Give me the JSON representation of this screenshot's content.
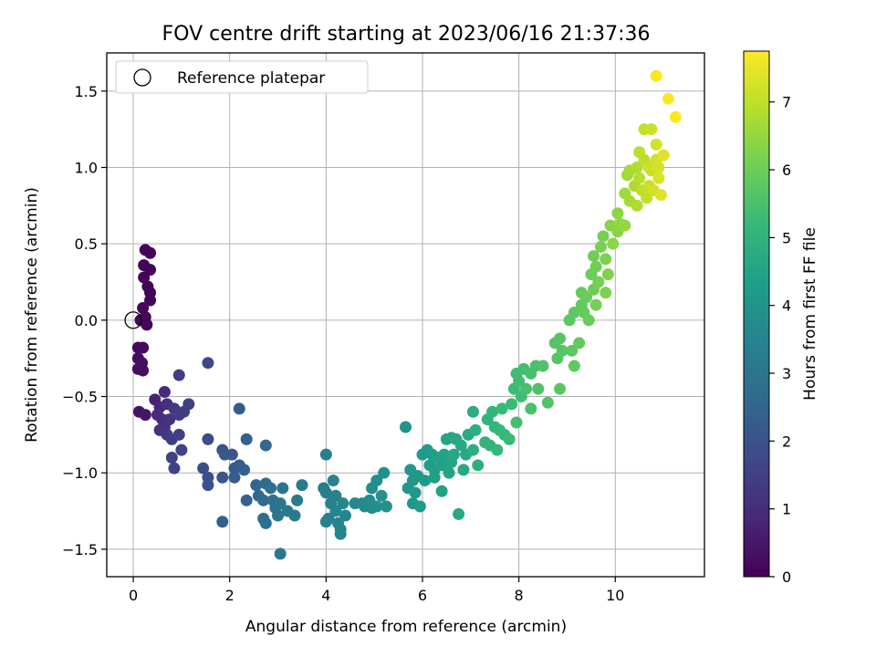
{
  "chart_data": {
    "type": "scatter",
    "title": "FOV centre drift starting at 2023/06/16 21:37:36",
    "xlabel": "Angular distance from reference (arcmin)",
    "ylabel": "Rotation from reference (arcmin)",
    "xlim": [
      -0.55,
      11.85
    ],
    "ylim": [
      -1.68,
      1.75
    ],
    "x_ticks": [
      0,
      2,
      4,
      6,
      8,
      10
    ],
    "y_ticks": [
      -1.5,
      -1.0,
      -0.5,
      0.0,
      0.5,
      1.0,
      1.5
    ],
    "x_tick_labels": [
      "0",
      "2",
      "4",
      "6",
      "8",
      "10"
    ],
    "y_tick_labels": [
      "−1.5",
      "−1.0",
      "−0.5",
      "0.0",
      "0.5",
      "1.0",
      "1.5"
    ],
    "grid": true,
    "legend": {
      "position": "top-left",
      "entries": [
        "Reference platepar"
      ]
    },
    "reference_point": {
      "x": 0.0,
      "y": 0.0
    },
    "colorbar": {
      "label": "Hours from first FF file",
      "range": [
        0,
        7.75
      ],
      "ticks": [
        0,
        1,
        2,
        3,
        4,
        5,
        6,
        7
      ],
      "tick_labels": [
        "0",
        "1",
        "2",
        "3",
        "4",
        "5",
        "6",
        "7"
      ],
      "colormap": "viridis",
      "colors": [
        "#440154",
        "#482878",
        "#3e4989",
        "#31688e",
        "#26828e",
        "#1f9e89",
        "#35b779",
        "#6ece58",
        "#b5de2b",
        "#fde725"
      ]
    },
    "points": [
      [
        0.25,
        0.46,
        0.05
      ],
      [
        0.35,
        0.44,
        0.06
      ],
      [
        0.22,
        0.36,
        0.07
      ],
      [
        0.35,
        0.33,
        0.08
      ],
      [
        0.22,
        0.28,
        0.09
      ],
      [
        0.3,
        0.22,
        0.1
      ],
      [
        0.35,
        0.18,
        0.11
      ],
      [
        0.35,
        0.13,
        0.12
      ],
      [
        0.2,
        0.08,
        0.13
      ],
      [
        0.25,
        0.02,
        0.14
      ],
      [
        0.15,
        0.0,
        0.15
      ],
      [
        0.28,
        -0.03,
        0.16
      ],
      [
        0.1,
        -0.18,
        0.2
      ],
      [
        0.2,
        -0.18,
        0.22
      ],
      [
        0.1,
        -0.25,
        0.25
      ],
      [
        0.18,
        -0.28,
        0.28
      ],
      [
        0.1,
        -0.32,
        0.3
      ],
      [
        0.2,
        -0.33,
        0.32
      ],
      [
        0.12,
        -0.6,
        0.4
      ],
      [
        0.25,
        -0.62,
        0.45
      ],
      [
        0.45,
        -0.52,
        0.7
      ],
      [
        0.55,
        -0.57,
        0.8
      ],
      [
        0.65,
        -0.47,
        0.9
      ],
      [
        0.5,
        -0.62,
        0.95
      ],
      [
        0.6,
        -0.65,
        1.0
      ],
      [
        0.7,
        -0.55,
        1.05
      ],
      [
        0.55,
        -0.72,
        1.1
      ],
      [
        0.65,
        -0.7,
        1.15
      ],
      [
        0.75,
        -0.65,
        1.2
      ],
      [
        0.85,
        -0.58,
        1.25
      ],
      [
        0.7,
        -0.75,
        1.3
      ],
      [
        0.8,
        -0.78,
        1.35
      ],
      [
        0.95,
        -0.62,
        1.4
      ],
      [
        0.95,
        -0.36,
        1.42
      ],
      [
        1.05,
        -0.6,
        1.45
      ],
      [
        1.15,
        -0.55,
        1.5
      ],
      [
        0.95,
        -0.75,
        1.5
      ],
      [
        0.8,
        -0.9,
        1.55
      ],
      [
        1.0,
        -0.85,
        1.6
      ],
      [
        0.85,
        -0.97,
        1.6
      ],
      [
        1.55,
        -0.28,
        1.7
      ],
      [
        1.55,
        -0.78,
        1.8
      ],
      [
        1.45,
        -0.97,
        1.85
      ],
      [
        1.55,
        -1.03,
        1.9
      ],
      [
        1.55,
        -1.08,
        1.95
      ],
      [
        1.85,
        -0.85,
        2.0
      ],
      [
        1.85,
        -1.03,
        2.05
      ],
      [
        1.9,
        -0.88,
        2.1
      ],
      [
        2.05,
        -0.88,
        2.15
      ],
      [
        2.1,
        -0.97,
        2.2
      ],
      [
        2.1,
        -1.03,
        2.25
      ],
      [
        2.2,
        -0.58,
        2.25
      ],
      [
        2.2,
        -0.95,
        2.3
      ],
      [
        2.3,
        -0.98,
        2.35
      ],
      [
        1.85,
        -1.32,
        2.35
      ],
      [
        2.35,
        -0.78,
        2.4
      ],
      [
        2.35,
        -1.18,
        2.45
      ],
      [
        2.55,
        -1.08,
        2.5
      ],
      [
        2.6,
        -1.15,
        2.55
      ],
      [
        2.75,
        -0.82,
        2.6
      ],
      [
        2.75,
        -1.07,
        2.65
      ],
      [
        2.7,
        -1.18,
        2.7
      ],
      [
        2.7,
        -1.3,
        2.75
      ],
      [
        2.75,
        -1.33,
        2.8
      ],
      [
        2.85,
        -1.1,
        2.85
      ],
      [
        2.9,
        -1.18,
        2.9
      ],
      [
        2.95,
        -1.23,
        2.95
      ],
      [
        3.0,
        -1.28,
        3.0
      ],
      [
        3.05,
        -1.2,
        3.0
      ],
      [
        3.1,
        -1.1,
        3.05
      ],
      [
        3.05,
        -1.53,
        3.1
      ],
      [
        3.2,
        -1.25,
        3.1
      ],
      [
        3.35,
        -1.28,
        3.15
      ],
      [
        3.4,
        -1.18,
        3.15
      ],
      [
        3.5,
        -1.08,
        3.2
      ],
      [
        3.95,
        -1.1,
        3.25
      ],
      [
        4.0,
        -0.88,
        3.3
      ],
      [
        4.0,
        -1.13,
        3.35
      ],
      [
        4.05,
        -1.3,
        3.35
      ],
      [
        4.0,
        -1.32,
        3.4
      ],
      [
        4.1,
        -1.2,
        3.4
      ],
      [
        4.15,
        -1.05,
        3.45
      ],
      [
        4.2,
        -1.15,
        3.45
      ],
      [
        4.2,
        -1.25,
        3.5
      ],
      [
        4.25,
        -1.33,
        3.5
      ],
      [
        4.3,
        -1.37,
        3.55
      ],
      [
        4.3,
        -1.4,
        3.55
      ],
      [
        4.35,
        -1.2,
        3.6
      ],
      [
        4.4,
        -1.28,
        3.6
      ],
      [
        4.6,
        -1.2,
        3.65
      ],
      [
        4.75,
        -1.2,
        3.7
      ],
      [
        4.8,
        -1.22,
        3.72
      ],
      [
        4.9,
        -1.18,
        3.75
      ],
      [
        4.95,
        -1.23,
        3.78
      ],
      [
        4.95,
        -1.1,
        3.8
      ],
      [
        5.05,
        -1.05,
        3.82
      ],
      [
        5.05,
        -1.22,
        3.85
      ],
      [
        5.15,
        -1.15,
        3.87
      ],
      [
        5.2,
        -1.0,
        3.9
      ],
      [
        5.25,
        -1.22,
        3.92
      ],
      [
        5.65,
        -0.7,
        4.0
      ],
      [
        5.7,
        -1.1,
        4.05
      ],
      [
        5.75,
        -0.98,
        4.05
      ],
      [
        5.8,
        -1.05,
        4.1
      ],
      [
        5.8,
        -1.2,
        4.1
      ],
      [
        5.85,
        -1.13,
        4.15
      ],
      [
        5.9,
        -1.02,
        4.15
      ],
      [
        5.95,
        -1.22,
        4.2
      ],
      [
        6.0,
        -0.88,
        4.2
      ],
      [
        6.05,
        -1.05,
        4.25
      ],
      [
        6.1,
        -0.85,
        4.25
      ],
      [
        6.15,
        -0.95,
        4.3
      ],
      [
        6.2,
        -0.88,
        4.3
      ],
      [
        6.25,
        -0.98,
        4.35
      ],
      [
        6.25,
        -1.03,
        4.35
      ],
      [
        6.3,
        -0.9,
        4.4
      ],
      [
        6.4,
        -0.95,
        4.4
      ],
      [
        6.4,
        -1.12,
        4.45
      ],
      [
        6.45,
        -0.88,
        4.45
      ],
      [
        6.5,
        -0.78,
        4.5
      ],
      [
        6.55,
        -1.0,
        4.5
      ],
      [
        6.6,
        -0.77,
        4.55
      ],
      [
        6.6,
        -0.93,
        4.55
      ],
      [
        6.65,
        -0.88,
        4.6
      ],
      [
        6.7,
        -0.78,
        4.6
      ],
      [
        6.75,
        -1.27,
        4.65
      ],
      [
        6.8,
        -0.82,
        4.65
      ],
      [
        6.85,
        -0.98,
        4.7
      ],
      [
        6.9,
        -0.88,
        4.7
      ],
      [
        6.95,
        -0.75,
        4.75
      ],
      [
        7.05,
        -0.6,
        4.8
      ],
      [
        7.05,
        -0.85,
        4.85
      ],
      [
        7.1,
        -0.72,
        4.9
      ],
      [
        7.15,
        -0.95,
        4.9
      ],
      [
        7.3,
        -0.8,
        5.0
      ],
      [
        7.35,
        -0.65,
        5.05
      ],
      [
        7.4,
        -0.82,
        5.05
      ],
      [
        7.45,
        -0.6,
        5.1
      ],
      [
        7.5,
        -0.7,
        5.1
      ],
      [
        7.55,
        -0.85,
        5.15
      ],
      [
        7.6,
        -0.72,
        5.15
      ],
      [
        7.65,
        -0.58,
        5.2
      ],
      [
        7.7,
        -0.75,
        5.2
      ],
      [
        7.8,
        -0.78,
        5.25
      ],
      [
        7.85,
        -0.55,
        5.25
      ],
      [
        7.9,
        -0.45,
        5.3
      ],
      [
        7.95,
        -0.35,
        5.3
      ],
      [
        8.0,
        -0.4,
        5.35
      ],
      [
        8.05,
        -0.5,
        5.35
      ],
      [
        7.95,
        -0.67,
        5.4
      ],
      [
        8.1,
        -0.32,
        5.4
      ],
      [
        8.15,
        -0.45,
        5.45
      ],
      [
        8.25,
        -0.35,
        5.45
      ],
      [
        8.25,
        -0.58,
        5.5
      ],
      [
        8.35,
        -0.3,
        5.5
      ],
      [
        8.4,
        -0.45,
        5.55
      ],
      [
        8.5,
        -0.3,
        5.55
      ],
      [
        8.6,
        -0.54,
        5.6
      ],
      [
        8.75,
        -0.15,
        5.65
      ],
      [
        8.8,
        -0.25,
        5.65
      ],
      [
        8.85,
        -0.12,
        5.7
      ],
      [
        8.9,
        -0.2,
        5.7
      ],
      [
        8.85,
        -0.45,
        5.7
      ],
      [
        9.05,
        0.0,
        5.75
      ],
      [
        9.1,
        -0.2,
        5.75
      ],
      [
        9.15,
        0.05,
        5.8
      ],
      [
        9.15,
        -0.3,
        5.8
      ],
      [
        9.25,
        -0.15,
        5.85
      ],
      [
        9.3,
        0.1,
        5.85
      ],
      [
        9.3,
        0.18,
        5.9
      ],
      [
        9.35,
        0.05,
        5.9
      ],
      [
        9.4,
        0.15,
        5.95
      ],
      [
        9.45,
        0.0,
        5.95
      ],
      [
        9.5,
        0.3,
        6.0
      ],
      [
        9.55,
        0.2,
        6.0
      ],
      [
        9.55,
        0.42,
        6.05
      ],
      [
        9.6,
        0.35,
        6.05
      ],
      [
        9.6,
        0.1,
        6.1
      ],
      [
        9.65,
        0.25,
        6.1
      ],
      [
        9.7,
        0.48,
        6.15
      ],
      [
        9.75,
        0.55,
        6.15
      ],
      [
        9.8,
        0.4,
        6.2
      ],
      [
        9.8,
        0.18,
        6.2
      ],
      [
        9.85,
        0.3,
        6.25
      ],
      [
        9.9,
        0.62,
        6.3
      ],
      [
        9.95,
        0.5,
        6.35
      ],
      [
        10.05,
        0.58,
        6.35
      ],
      [
        10.05,
        0.7,
        6.4
      ],
      [
        10.1,
        0.63,
        6.45
      ],
      [
        10.2,
        0.62,
        6.5
      ],
      [
        10.2,
        0.83,
        6.6
      ],
      [
        10.25,
        0.95,
        6.65
      ],
      [
        10.3,
        0.98,
        6.7
      ],
      [
        10.3,
        0.78,
        6.7
      ],
      [
        10.4,
        0.88,
        6.75
      ],
      [
        10.45,
        0.75,
        6.8
      ],
      [
        10.45,
        1.0,
        6.85
      ],
      [
        10.5,
        0.93,
        6.9
      ],
      [
        10.5,
        1.1,
        6.95
      ],
      [
        10.55,
        0.85,
        7.0
      ],
      [
        10.6,
        1.05,
        7.0
      ],
      [
        10.6,
        1.25,
        7.05
      ],
      [
        10.65,
        0.8,
        7.05
      ],
      [
        10.7,
        1.0,
        7.1
      ],
      [
        10.7,
        0.88,
        7.1
      ],
      [
        10.75,
        1.25,
        7.15
      ],
      [
        10.75,
        0.98,
        7.15
      ],
      [
        10.8,
        0.85,
        7.2
      ],
      [
        10.85,
        1.05,
        7.2
      ],
      [
        10.85,
        1.15,
        7.25
      ],
      [
        10.9,
        1.0,
        7.25
      ],
      [
        10.9,
        0.93,
        7.3
      ],
      [
        10.95,
        0.82,
        7.35
      ],
      [
        11.0,
        1.08,
        7.4
      ],
      [
        10.85,
        1.6,
        7.7
      ],
      [
        11.1,
        1.45,
        7.75
      ],
      [
        11.25,
        1.33,
        7.75
      ]
    ]
  }
}
